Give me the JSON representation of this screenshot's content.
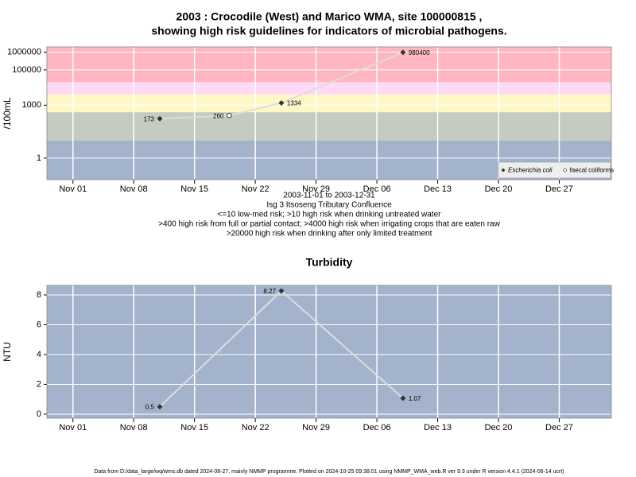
{
  "footer": "Data from D:/data_large/wq/wms.db dated 2024-08-27, mainly NMMP programme. Plotted on 2024-10-25 09:38:01 using NMMP_WMA_web.R ver 9.3 under R version 4.4.1 (2024-06-14 ucrt)",
  "chart_data": [
    {
      "type": "line",
      "title": [
        "2003 : Crocodile (West) and Marico WMA, site 100000815 ,",
        "showing high risk guidelines for indicators of microbial pathogens."
      ],
      "ylabel": "/100mL",
      "log_y": true,
      "grid": true,
      "legend": "bottom-right",
      "line_color": "#dddddd",
      "x": [
        "2003-11-11",
        "2003-11-19",
        "2003-11-25",
        "2003-12-09"
      ],
      "xlim": [
        "2003-10-29",
        "2004-01-02"
      ],
      "xticks": [
        {
          "value": "2003-11-01",
          "label": "Nov 01"
        },
        {
          "value": "2003-11-08",
          "label": "Nov 08"
        },
        {
          "value": "2003-11-15",
          "label": "Nov 15"
        },
        {
          "value": "2003-11-22",
          "label": "Nov 22"
        },
        {
          "value": "2003-11-29",
          "label": "Nov 29"
        },
        {
          "value": "2003-12-06",
          "label": "Dec 06"
        },
        {
          "value": "2003-12-13",
          "label": "Dec 13"
        },
        {
          "value": "2003-12-20",
          "label": "Dec 20"
        },
        {
          "value": "2003-12-27",
          "label": "Dec 27"
        }
      ],
      "ylim": [
        0.06,
        2000000
      ],
      "yticks": [
        1,
        1000,
        100000,
        1000000
      ],
      "band_thresholds": [
        10,
        400,
        4000,
        20000
      ],
      "band_colors": [
        "#a3b3cc",
        "#c5cbbf",
        "#fff8c4",
        "#ffd9f5",
        "#ffb6c1"
      ],
      "series": [
        {
          "name": "Escherichia coli",
          "color": "#333333",
          "marker": "diamond",
          "values": [
            173,
            null,
            1334,
            980400
          ]
        },
        {
          "name": "faecal coliforms",
          "color": "#333333",
          "marker": "circle-open",
          "values": [
            null,
            260,
            null,
            null
          ]
        }
      ],
      "notes": [
        "2003-11-01 to 2003-12-31",
        "Isg 3 Itsoseng Tributary Confluence",
        "<=10 low-med risk; >10 high risk when drinking untreated water",
        ">400 high risk from full or partial contact; >4000 high risk when irrigating crops that are eaten raw",
        ">20000 high risk when drinking after only limited treatment"
      ]
    },
    {
      "type": "line",
      "title": [
        "Turbidity"
      ],
      "ylabel": "NTU",
      "log_y": false,
      "grid": true,
      "line_color": "#dddddd",
      "background": "#a3b3cc",
      "x": [
        "2003-11-11",
        "2003-11-25",
        "2003-12-09"
      ],
      "xlim": [
        "2003-10-29",
        "2004-01-02"
      ],
      "xticks": [
        {
          "value": "2003-11-01",
          "label": "Nov 01"
        },
        {
          "value": "2003-11-08",
          "label": "Nov 08"
        },
        {
          "value": "2003-11-15",
          "label": "Nov 15"
        },
        {
          "value": "2003-11-22",
          "label": "Nov 22"
        },
        {
          "value": "2003-11-29",
          "label": "Nov 29"
        },
        {
          "value": "2003-12-06",
          "label": "Dec 06"
        },
        {
          "value": "2003-12-13",
          "label": "Dec 13"
        },
        {
          "value": "2003-12-20",
          "label": "Dec 20"
        },
        {
          "value": "2003-12-27",
          "label": "Dec 27"
        }
      ],
      "ylim": [
        -0.27,
        8.64
      ],
      "yticks": [
        0,
        2,
        4,
        6,
        8
      ],
      "series": [
        {
          "color": "#333333",
          "marker": "diamond",
          "values": [
            0.5,
            8.27,
            1.07
          ]
        }
      ]
    }
  ]
}
